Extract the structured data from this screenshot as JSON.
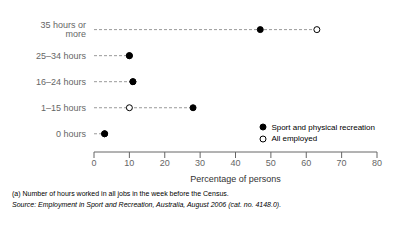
{
  "chart_data": {
    "type": "dot",
    "categories": [
      "0 hours",
      "1–15 hours",
      "16–24 hours",
      "25–34 hours",
      "35 hours or more"
    ],
    "series": [
      {
        "name": "Sport and physical recreation",
        "color": "#000000",
        "marker": "circle",
        "values": [
          3,
          28,
          11,
          10,
          47
        ]
      },
      {
        "name": "All employed",
        "color": "#000000",
        "marker": "open_circle",
        "values": [
          3,
          10,
          11,
          10,
          63
        ]
      }
    ],
    "color": "#999999",
    "line_style": "dashed",
    "xlabel": "Percentage of persons",
    "xlim": [
      0,
      80
    ],
    "xticks": [
      0,
      10,
      20,
      30,
      40,
      50,
      60,
      70,
      80
    ],
    "grid": false,
    "legend": "lower right",
    "annotations": [
      "(a) Number of hours worked in all jobs in the week before the Census.",
      "Source: Employment in Sport and Recreation, Australia, August 2006 (cat.  no.  4148.0)."
    ]
  }
}
